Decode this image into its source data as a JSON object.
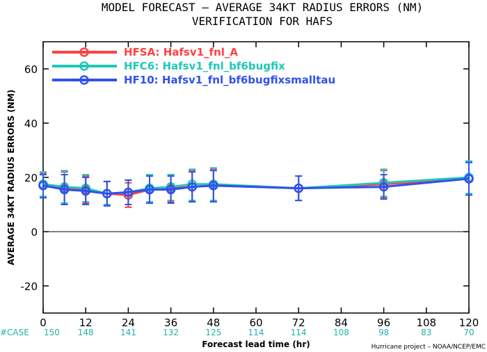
{
  "title_line1": "MODEL FORECAST – AVERAGE 34KT RADIUS ERRORS (NM)",
  "title_line2": "VERIFICATION FOR HAFS",
  "ylabel": "AVERAGE 34KT RADIUS ERRORS (NM)",
  "xlabel": "Forecast lead time (hr)",
  "case_label": "#CASE",
  "credit": "Hurricane project – NOAA/NCEP/EMC",
  "chart_data": {
    "type": "line",
    "title": "MODEL FORECAST – AVERAGE 34KT RADIUS ERRORS (NM) / VERIFICATION FOR HAFS",
    "xlabel": "Forecast lead time (hr)",
    "ylabel": "AVERAGE 34KT RADIUS ERRORS (NM)",
    "xlim": [
      0,
      120
    ],
    "ylim": [
      -30,
      70
    ],
    "xticks": [
      0,
      12,
      24,
      36,
      48,
      60,
      72,
      84,
      96,
      108,
      120
    ],
    "yticks": [
      -20,
      0,
      20,
      40,
      60
    ],
    "zero_line": true,
    "grid": false,
    "legend_position": "top-left",
    "case_counts": {
      "x": [
        0,
        12,
        24,
        36,
        48,
        60,
        72,
        84,
        96,
        108,
        120
      ],
      "values": [
        150,
        148,
        141,
        132,
        125,
        114,
        114,
        108,
        98,
        83,
        70
      ]
    },
    "series": [
      {
        "name": "HFSA: Hafsv1_fnl_A",
        "color": "#ff4040",
        "x": [
          0,
          6,
          12,
          18,
          24,
          30,
          36,
          42,
          48,
          72,
          96,
          120
        ],
        "values": [
          17.0,
          16.0,
          15.5,
          14.0,
          13.5,
          15.5,
          16.0,
          16.5,
          17.0,
          16.0,
          17.5,
          19.5
        ],
        "err_lo": [
          12.5,
          10.0,
          10.5,
          9.5,
          9.0,
          10.5,
          11.0,
          11.0,
          11.0,
          11.5,
          12.5,
          13.5
        ],
        "err_hi": [
          21.5,
          22.0,
          20.5,
          18.5,
          18.0,
          20.5,
          21.0,
          22.5,
          23.0,
          20.5,
          22.5,
          25.5
        ]
      },
      {
        "name": "HFC6: Hafsv1_fnl_bf6bugfix",
        "color": "#20c8b4",
        "x": [
          0,
          6,
          12,
          18,
          24,
          30,
          36,
          42,
          48,
          72,
          96,
          120
        ],
        "values": [
          17.5,
          16.5,
          16.0,
          14.0,
          14.5,
          16.0,
          16.5,
          17.5,
          17.5,
          16.0,
          18.0,
          20.0
        ],
        "err_lo": [
          13.0,
          10.5,
          11.0,
          10.0,
          10.0,
          11.0,
          11.5,
          11.5,
          11.5,
          11.5,
          13.0,
          14.0
        ],
        "err_hi": [
          22.0,
          22.5,
          21.0,
          18.5,
          19.0,
          21.0,
          21.0,
          23.0,
          23.5,
          20.5,
          23.0,
          26.0
        ]
      },
      {
        "name": "HF10: Hafsv1_fnl_bf6bugfixsmalltau",
        "color": "#3050f0",
        "x": [
          0,
          6,
          12,
          18,
          24,
          30,
          36,
          42,
          48,
          72,
          96,
          120
        ],
        "values": [
          17.0,
          15.5,
          15.0,
          14.0,
          14.5,
          15.5,
          15.5,
          16.5,
          17.0,
          16.0,
          16.5,
          19.5
        ],
        "err_lo": [
          12.5,
          10.0,
          10.0,
          9.5,
          10.0,
          10.5,
          10.5,
          11.0,
          11.0,
          11.5,
          12.0,
          13.5
        ],
        "err_hi": [
          21.0,
          21.0,
          20.0,
          18.5,
          19.0,
          20.5,
          20.5,
          22.0,
          22.5,
          20.5,
          21.0,
          25.5
        ]
      }
    ]
  }
}
